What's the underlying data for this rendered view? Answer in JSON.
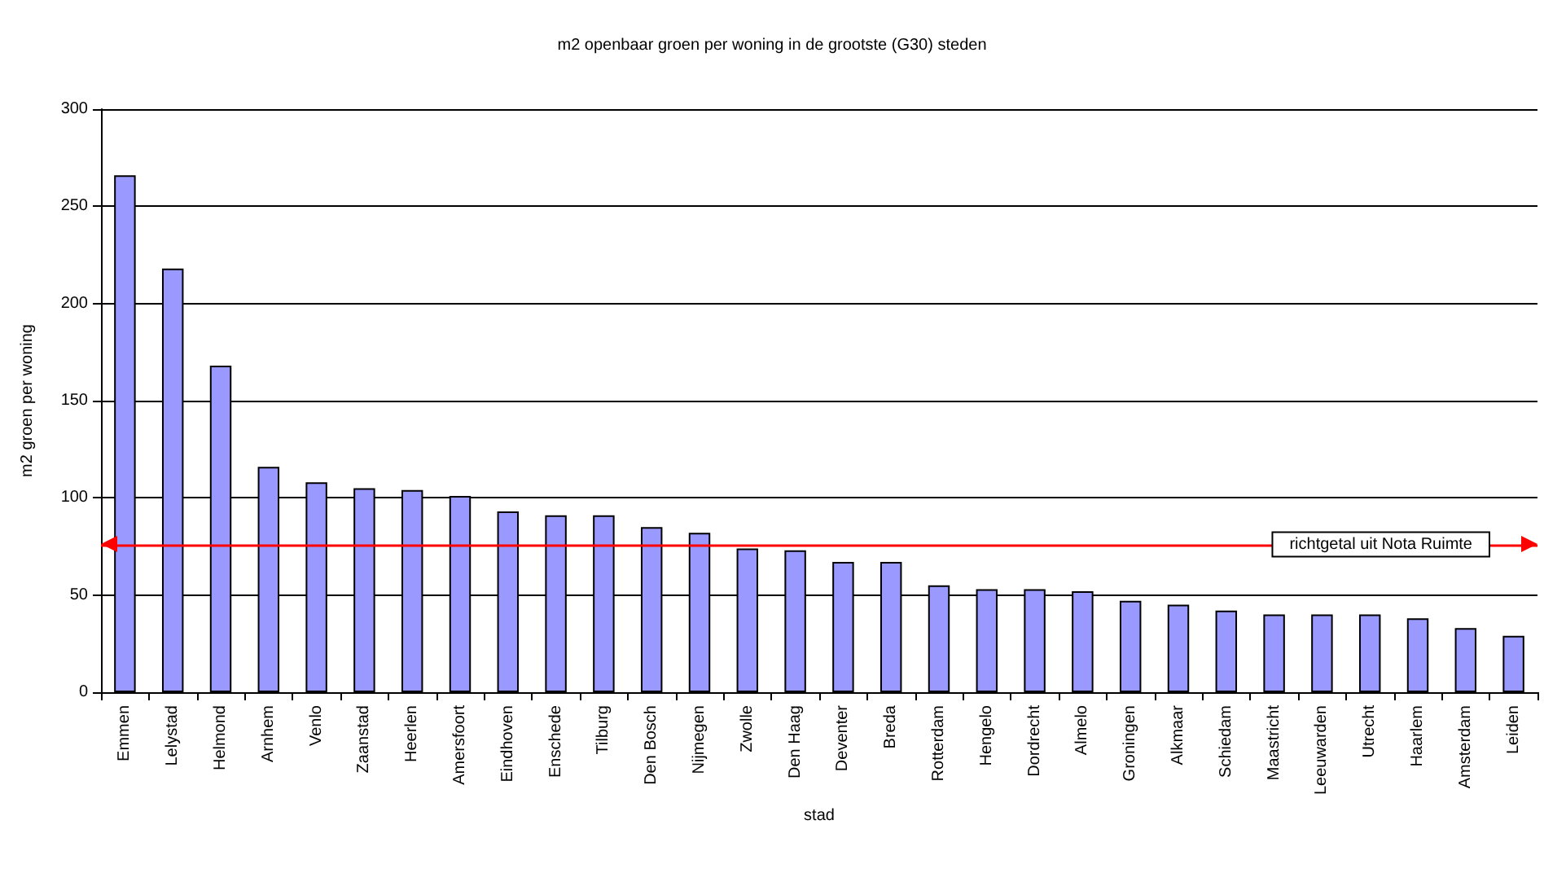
{
  "chart_data": {
    "type": "bar",
    "title": "m2 openbaar groen per woning in de grootste (G30) steden",
    "xlabel": "stad",
    "ylabel": "m2 groen per woning",
    "categories": [
      "Emmen",
      "Lelystad",
      "Helmond",
      "Arnhem",
      "Venlo",
      "Zaanstad",
      "Heerlen",
      "Amersfoort",
      "Eindhoven",
      "Enschede",
      "Tilburg",
      "Den Bosch",
      "Nijmegen",
      "Zwolle",
      "Den Haag",
      "Deventer",
      "Breda",
      "Rotterdam",
      "Hengelo",
      "Dordrecht",
      "Almelo",
      "Groningen",
      "Alkmaar",
      "Schiedam",
      "Maastricht",
      "Leeuwarden",
      "Utrecht",
      "Haarlem",
      "Amsterdam",
      "Leiden"
    ],
    "values": [
      266,
      218,
      168,
      116,
      108,
      105,
      104,
      101,
      93,
      91,
      91,
      85,
      82,
      74,
      73,
      67,
      67,
      55,
      53,
      53,
      52,
      47,
      45,
      42,
      40,
      40,
      40,
      38,
      33,
      29
    ],
    "color": "#9999ff",
    "ylim": [
      0,
      300
    ],
    "yticks": [
      0,
      50,
      100,
      150,
      200,
      250,
      300
    ],
    "grid": "y",
    "ref_lines": [
      {
        "axis": "y",
        "value": 76,
        "label": "richtgetal uit Nota Ruimte",
        "color": "#ff0000"
      }
    ]
  }
}
